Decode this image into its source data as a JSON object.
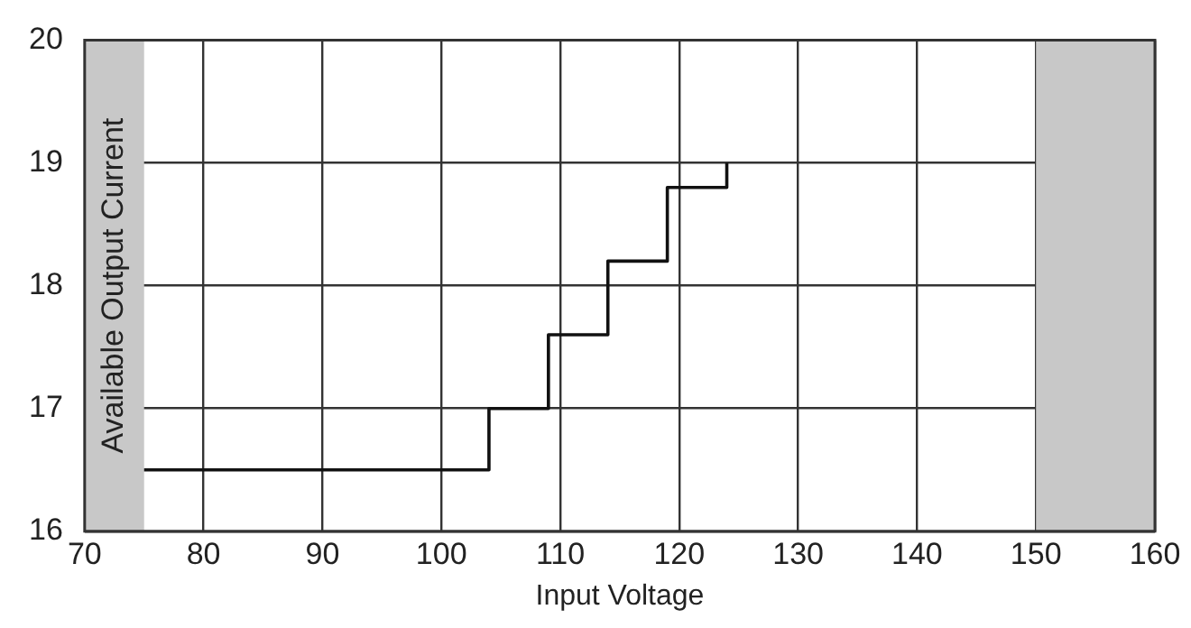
{
  "chart_data": {
    "type": "step",
    "xlabel": "Input Voltage",
    "ylabel": "Available Output Current",
    "x": [
      75,
      104,
      109,
      114,
      119,
      124
    ],
    "series": [
      {
        "color": "#111111",
        "values": [
          16.5,
          17,
          17.6,
          18.2,
          18.8,
          19
        ]
      }
    ],
    "xlim": [
      70,
      160
    ],
    "xticks": [
      70,
      80,
      90,
      100,
      110,
      120,
      130,
      140,
      150,
      160
    ],
    "ylim": [
      16,
      20
    ],
    "yticks": [
      16,
      17,
      18,
      19,
      20
    ],
    "bands": [
      {
        "axis": "x",
        "from": 70,
        "to": 75,
        "color": "#c8c8c8"
      },
      {
        "axis": "x",
        "from": 150,
        "to": 160,
        "color": "#c8c8c8"
      }
    ],
    "grid": true,
    "legend": false,
    "marker": "none",
    "line_style": "solid"
  }
}
